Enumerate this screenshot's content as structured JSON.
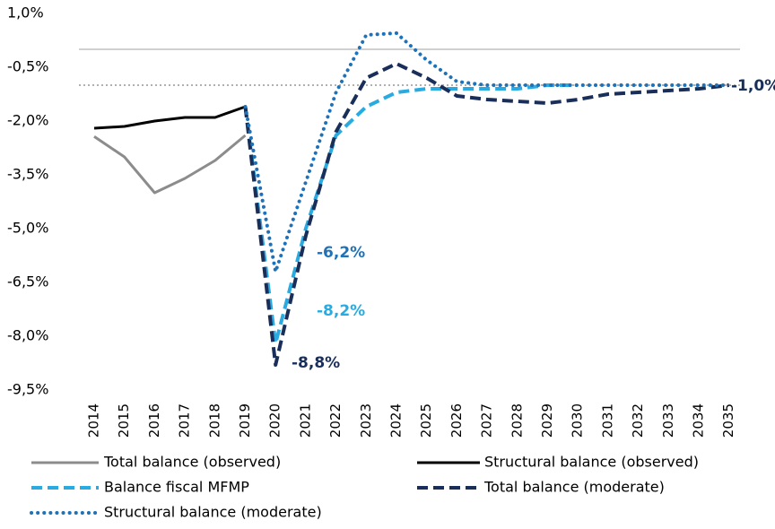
{
  "chart_data": {
    "type": "line",
    "categories": [
      "2014",
      "2015",
      "2016",
      "2017",
      "2018",
      "2019",
      "2020",
      "2021",
      "2022",
      "2023",
      "2024",
      "2025",
      "2026",
      "2027",
      "2028",
      "2029",
      "2030",
      "2031",
      "2032",
      "2033",
      "2034",
      "2035"
    ],
    "ylim": [
      -9.5,
      1.0
    ],
    "yticks": [
      {
        "value": -9.5,
        "label": "-9,5%"
      },
      {
        "value": -8.0,
        "label": "-8,0%"
      },
      {
        "value": -6.5,
        "label": "-6,5%"
      },
      {
        "value": -5.0,
        "label": "-5,0%"
      },
      {
        "value": -3.5,
        "label": "-3,5%"
      },
      {
        "value": -2.0,
        "label": "-2,0%"
      },
      {
        "value": -0.5,
        "label": "-0,5%"
      },
      {
        "value": 1.0,
        "label": "1,0%"
      }
    ],
    "reference_lines": [
      {
        "value": 0,
        "style": "solid",
        "color": "#d0d0d0"
      },
      {
        "value": -1.0,
        "style": "dotted",
        "color": "#b0b0b0"
      }
    ],
    "legend": "bottom",
    "series": [
      {
        "name": "Total balance (observed)",
        "color": "#8c8c8c",
        "style": "solid",
        "values": [
          -2.43,
          -3.0,
          -4.0,
          -3.6,
          -3.1,
          -2.4,
          null,
          null,
          null,
          null,
          null,
          null,
          null,
          null,
          null,
          null,
          null,
          null,
          null,
          null,
          null,
          null
        ]
      },
      {
        "name": "Structural balance (observed)",
        "color": "#000000",
        "style": "solid",
        "values": [
          -2.2,
          -2.15,
          -2.0,
          -1.9,
          -1.9,
          -1.6,
          null,
          null,
          null,
          null,
          null,
          null,
          null,
          null,
          null,
          null,
          null,
          null,
          null,
          null,
          null,
          null
        ]
      },
      {
        "name": "Balance fiscal MFMP",
        "color": "#29abe2",
        "style": "dashed",
        "values": [
          null,
          null,
          null,
          null,
          null,
          -1.6,
          -8.2,
          -5.0,
          -2.4,
          -1.6,
          -1.2,
          -1.1,
          -1.1,
          -1.1,
          -1.1,
          -1.0,
          -1.0,
          null,
          null,
          null,
          null,
          null
        ]
      },
      {
        "name": "Total balance (moderate)",
        "color": "#1a2e5a",
        "style": "dashed",
        "values": [
          null,
          null,
          null,
          null,
          null,
          -1.6,
          -8.8,
          -5.2,
          -2.3,
          -0.8,
          -0.4,
          -0.8,
          -1.3,
          -1.4,
          -1.45,
          -1.5,
          -1.4,
          -1.25,
          -1.2,
          -1.15,
          -1.1,
          -1.0
        ]
      },
      {
        "name": "Structural balance (moderate)",
        "color": "#1f72b8",
        "style": "dotted",
        "values": [
          null,
          null,
          null,
          null,
          null,
          -1.6,
          -6.2,
          -3.7,
          -1.2,
          0.4,
          0.45,
          -0.3,
          -0.9,
          -1.0,
          -1.0,
          -1.0,
          -1.0,
          -1.0,
          -1.0,
          -1.0,
          -1.0,
          -1.0
        ]
      }
    ],
    "annotations": [
      {
        "text": "-6,2%",
        "color": "#1f72b8"
      },
      {
        "text": "-8,2%",
        "color": "#29abe2"
      },
      {
        "text": "-8,8%",
        "color": "#1a2e5a"
      },
      {
        "text": "-1,0%",
        "color": "#1a2e5a"
      }
    ]
  }
}
